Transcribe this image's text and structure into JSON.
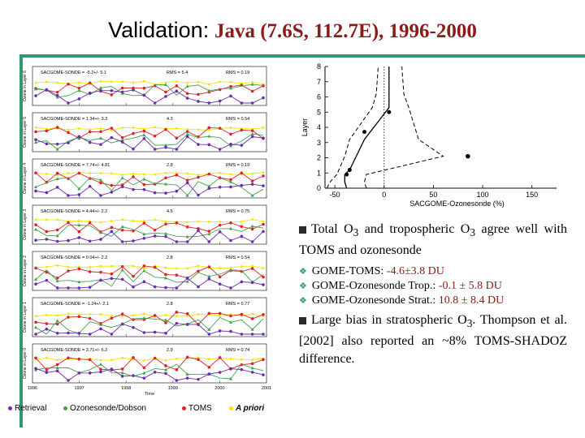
{
  "title": {
    "label": "Validation:",
    "location": "Java (7.6S, 112.7E), 1996-2000"
  },
  "timeseries": {
    "panels": [
      {
        "ylabel": "Ozone in Layer 6",
        "stat_mean": "SACGOME-SONDE = -5.2+/- 5.1",
        "rms_a": "RMS = 5.4",
        "rms_b": "RMS = 0.19"
      },
      {
        "ylabel": "Ozone in Layer 5",
        "stat_mean": "SACGOME-SONDE = 1.34+/- 3.3",
        "rms_a": "4.3",
        "rms_b": "RMS = 0.54"
      },
      {
        "ylabel": "Ozone in Layer 4",
        "stat_mean": "SACGOME-SONDE = 7.74+/- 4.81",
        "rms_a": "2.8",
        "rms_b": "RMS = 0.19"
      },
      {
        "ylabel": "Ozone in Layer 3",
        "stat_mean": "SACGOME-SONDE = 4.44+/- 2.2",
        "rms_a": "4.5",
        "rms_b": "RMS = 0.75"
      },
      {
        "ylabel": "Ozone in Layer 2",
        "stat_mean": "SACGOME-SONDE = 0.04+/- 2.2",
        "rms_a": "2.8",
        "rms_b": "RMS = 0.54"
      },
      {
        "ylabel": "Ozone in Layer 1",
        "stat_mean": "SACGOME-SONDE = -1.24+/- 2.1",
        "rms_a": "2.8",
        "rms_b": "RMS = 0.77"
      },
      {
        "ylabel": "Ozone in Layer 0",
        "stat_mean": "SACGOME-SONDE = 3.71+/- 6.2",
        "rms_a": "2.9",
        "rms_b": "RMS = 0.74"
      }
    ],
    "year_ticks": [
      "1996",
      "1997",
      "1998",
      "1999",
      "2000",
      "2001"
    ],
    "xlabel": "Time",
    "colors": {
      "retrieval": "#6a2cb0",
      "sonde": "#3fa34d",
      "toms": "#d8252a",
      "apriori": "#f2e600"
    }
  },
  "legend": {
    "retrieval": "Retrieval",
    "sonde": "Ozonesonde/Dobson",
    "toms": "TOMS",
    "apriori": "A priori"
  },
  "chart_data": [
    {
      "type": "line",
      "title": "",
      "xlabel": "SACGOME-Ozonesonde (%)",
      "ylabel": "Layer",
      "xlim": [
        -60,
        175
      ],
      "ylim": [
        0,
        8
      ],
      "xticks": [
        -50,
        0,
        50,
        100,
        150
      ],
      "yticks": [
        0,
        1,
        2,
        3,
        4,
        5,
        6,
        7,
        8
      ],
      "series": [
        {
          "name": "mean",
          "style": "solid",
          "x": [
            -38,
            -40,
            -40,
            -35,
            -20,
            5,
            5,
            5
          ],
          "y": [
            0,
            0.4,
            0.9,
            1.2,
            3.2,
            5.3,
            6.2,
            8
          ]
        },
        {
          "name": "mean + std",
          "style": "dashed",
          "x": [
            -18,
            -20,
            -18,
            60,
            35,
            25,
            20,
            18
          ],
          "y": [
            0,
            0.4,
            0.9,
            2.1,
            3.2,
            5.3,
            6.2,
            8
          ]
        },
        {
          "name": "mean - std",
          "style": "dashed",
          "x": [
            -58,
            -55,
            -48,
            -40,
            -35,
            -12,
            -8,
            -6
          ],
          "y": [
            0,
            0.4,
            0.9,
            2.1,
            3.2,
            5.3,
            6.2,
            8
          ]
        },
        {
          "name": "points",
          "style": "markers",
          "x": [
            -38,
            -35,
            5,
            -20
          ],
          "y": [
            0.9,
            1.2,
            5.0,
            3.7
          ]
        }
      ],
      "highlight_point": {
        "x": 85,
        "y": 2.1
      }
    }
  ],
  "bullets": {
    "b1_text": "Total O",
    "b1_sub": "3",
    "b1_rest": " and tropospheric O",
    "b1_sub2": "3",
    "b1_end": " agree well with TOMS and ozonesonde",
    "subs": [
      {
        "label": "GOME-TOMS:",
        "value": "-4.6±3.8 DU"
      },
      {
        "label": "GOME-Ozonesonde Trop.:",
        "value": "-0.1 ± 5.8 DU"
      },
      {
        "label": "GOME-Ozonesonde Strat.:",
        "value": "10.8 ± 8.4 DU"
      }
    ],
    "b2_text": "Large bias in stratospheric O",
    "b2_sub": "3",
    "b2_end": ". Thompson et al. [2002] also reported an ~8% TOMS-SHADOZ difference."
  }
}
